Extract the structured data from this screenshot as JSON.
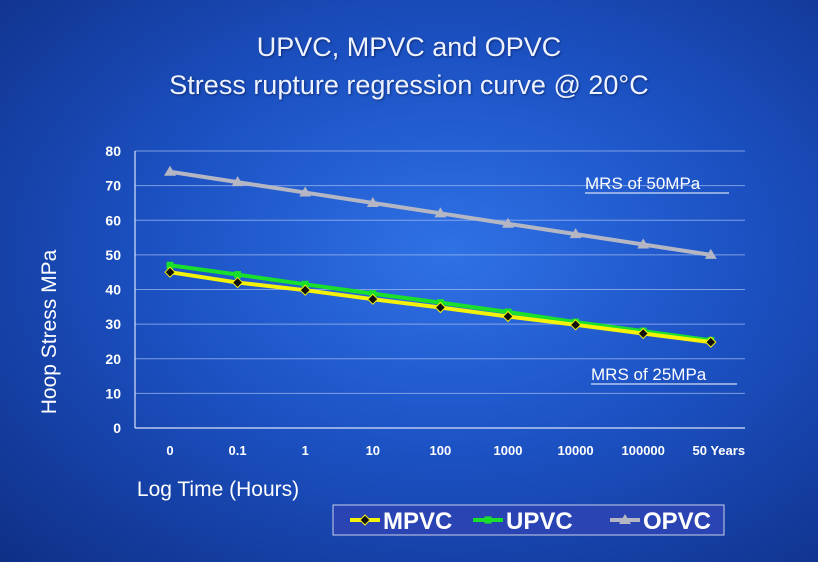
{
  "slide": {
    "title_line1": "UPVC, MPVC and OPVC",
    "title_line2": "Stress rupture regression curve @ 20°C"
  },
  "chart_data": {
    "type": "line",
    "xlabel": "Log Time (Hours)",
    "ylabel": "Hoop Stress MPa",
    "ylim": [
      0,
      80
    ],
    "yticks": [
      0,
      10,
      20,
      30,
      40,
      50,
      60,
      70,
      80
    ],
    "categories": [
      "0",
      "0.1",
      "1",
      "10",
      "100",
      "1000",
      "10000",
      "100000",
      "50 Years"
    ],
    "grid": true,
    "legend_position": "bottom-right",
    "series": [
      {
        "name": "MPVC",
        "color": "#f5f20a",
        "marker": "diamond",
        "values": [
          45,
          42,
          39.8,
          37.2,
          34.8,
          32.2,
          29.8,
          27.3,
          24.8
        ]
      },
      {
        "name": "UPVC",
        "color": "#19e02b",
        "marker": "square",
        "values": [
          47,
          44.3,
          41.5,
          38.8,
          36.2,
          33.5,
          30.6,
          28,
          25.3
        ]
      },
      {
        "name": "OPVC",
        "color": "#b4b6c4",
        "marker": "triangle",
        "values": [
          74,
          71,
          68,
          65,
          62,
          59,
          56,
          53,
          50
        ]
      }
    ],
    "annotations": [
      "MRS of 50MPa",
      "MRS of 25MPa"
    ]
  }
}
